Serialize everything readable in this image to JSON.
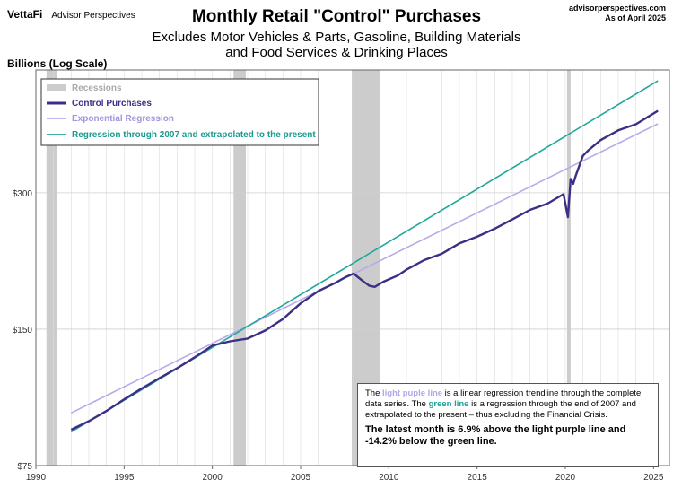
{
  "brand": {
    "logo": "VettaFi",
    "name": "Advisor Perspectives"
  },
  "site": {
    "url": "advisorperspectives.com",
    "asof": "As of April 2025"
  },
  "title": "Monthly Retail \"Control\" Purchases",
  "subtitle_line1": "Excludes Motor Vehicles & Parts, Gasoline, Building Materials",
  "subtitle_line2": "and Food Services & Drinking Places",
  "y_axis_label": "Billions (Log Scale)",
  "legend": {
    "recessions": "Recessions",
    "control": "Control Purchases",
    "exp_reg": "Exponential Regression",
    "reg2007": "Regression through 2007 and extrapolated to the present"
  },
  "note": {
    "t1": "The ",
    "purple_label": "light puple line",
    "t2": " is a linear regression trendline  through the complete data series. The ",
    "green_label": "green line",
    "t3": " is a regression through the end of 2007 and extrapolated to the present  – thus excluding the Financial Crisis.",
    "conclusion": "The latest month is 6.9% above the light purple line and -14.2% below the green line."
  },
  "colors": {
    "control": "#3b2f86",
    "exp_reg": "#b9a9ea",
    "reg2007": "#20a79c",
    "recession": "#cccccc",
    "grid": "#dcdcdc"
  },
  "chart_data": {
    "type": "line",
    "title": "Monthly Retail \"Control\" Purchases",
    "ylabel": "Billions (Log Scale)",
    "log_scale_y": true,
    "xlim": [
      1990,
      2025.9
    ],
    "ylim": [
      75,
      560
    ],
    "x_ticks": [
      1990,
      1995,
      2000,
      2005,
      2010,
      2015,
      2020,
      2025
    ],
    "y_ticks": [
      {
        "value": 75,
        "label": "$75"
      },
      {
        "value": 150,
        "label": "$150"
      },
      {
        "value": 300,
        "label": "$300"
      }
    ],
    "grid": true,
    "legend_position": "top-left",
    "recessions": [
      [
        1990.6,
        1991.2
      ],
      [
        2001.2,
        2001.9
      ],
      [
        2007.9,
        2009.5
      ],
      [
        2020.1,
        2020.3
      ]
    ],
    "series": [
      {
        "name": "Control Purchases",
        "x": [
          1992.0,
          1993.0,
          1994.0,
          1995.0,
          1996.0,
          1997.0,
          1998.0,
          1999.0,
          2000.0,
          2001.0,
          2002.0,
          2003.0,
          2004.0,
          2005.0,
          2006.0,
          2007.0,
          2007.5,
          2008.0,
          2008.5,
          2008.9,
          2009.2,
          2009.7,
          2010.5,
          2011.0,
          2012.0,
          2013.0,
          2014.0,
          2015.0,
          2016.0,
          2017.0,
          2018.0,
          2019.0,
          2019.9,
          2020.15,
          2020.3,
          2020.45,
          2020.6,
          2021.0,
          2021.3,
          2022.0,
          2023.0,
          2024.0,
          2025.25
        ],
        "values": [
          90,
          94,
          99,
          105,
          111,
          117,
          123,
          130,
          138,
          141,
          143,
          149,
          158,
          171,
          182,
          190,
          195,
          199,
          192,
          187,
          186,
          191,
          197,
          203,
          213,
          220,
          232,
          240,
          250,
          262,
          275,
          284,
          298,
          265,
          322,
          314,
          328,
          362,
          372,
          392,
          412,
          425,
          455
        ]
      },
      {
        "name": "Exponential Regression",
        "x": [
          1992.0,
          2025.25
        ],
        "values": [
          98,
          426
        ]
      },
      {
        "name": "Regression through 2007 and extrapolated to the present",
        "x": [
          1992.0,
          2025.25
        ],
        "values": [
          89,
          530
        ]
      }
    ]
  }
}
